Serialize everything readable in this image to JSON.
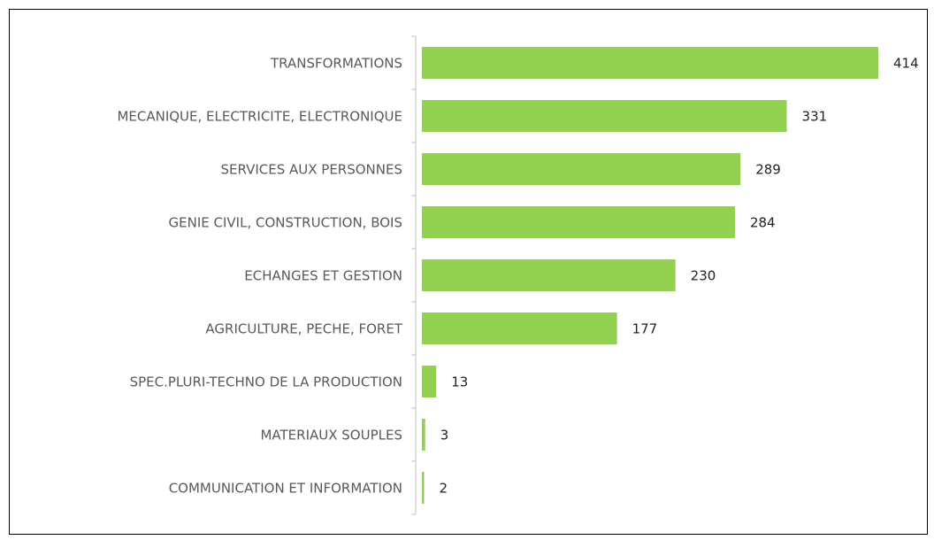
{
  "chart_data": {
    "type": "bar",
    "orientation": "horizontal",
    "categories": [
      "TRANSFORMATIONS",
      "MECANIQUE, ELECTRICITE, ELECTRONIQUE",
      "SERVICES AUX PERSONNES",
      "GENIE CIVIL, CONSTRUCTION, BOIS",
      "ECHANGES ET GESTION",
      "AGRICULTURE, PECHE, FORET",
      "SPEC.PLURI-TECHNO DE LA PRODUCTION",
      "MATERIAUX SOUPLES",
      "COMMUNICATION ET INFORMATION"
    ],
    "values": [
      414,
      331,
      289,
      284,
      230,
      177,
      13,
      3,
      2
    ],
    "color": "#92d050"
  }
}
